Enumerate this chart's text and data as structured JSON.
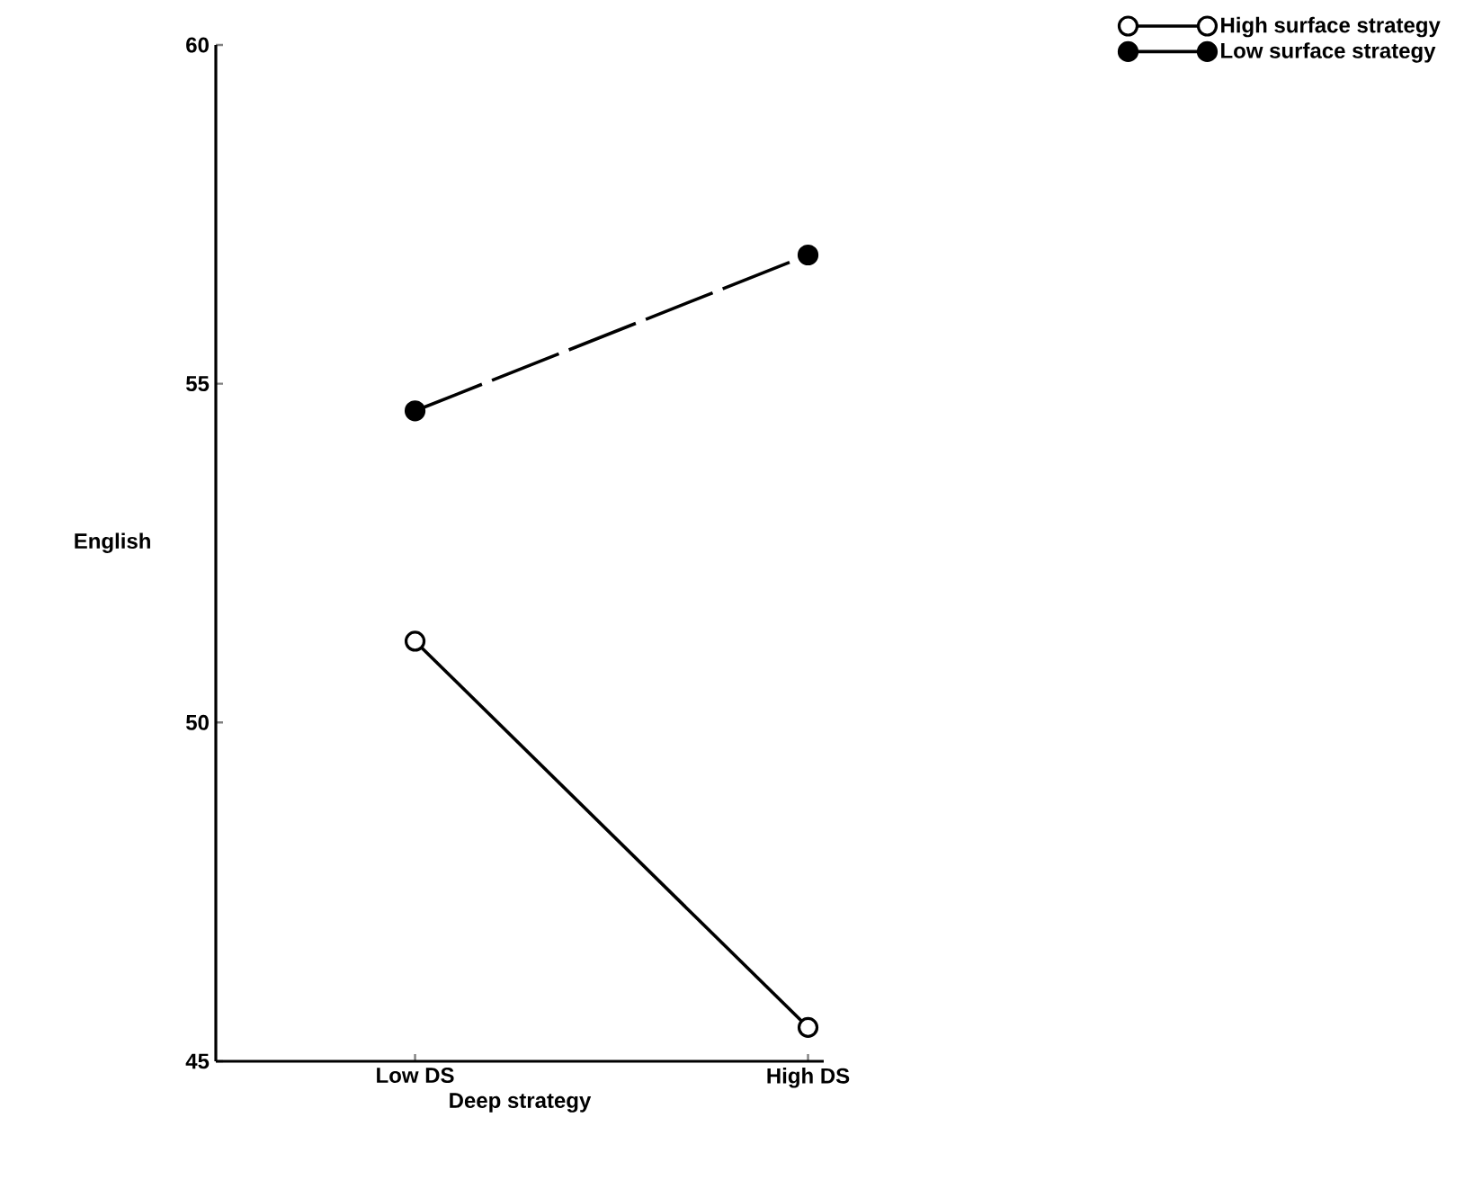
{
  "chart_data": {
    "type": "line",
    "xlabel": "Deep strategy",
    "ylabel": "English",
    "categories": [
      "Low DS",
      "High DS"
    ],
    "series": [
      {
        "name": "High surface strategy",
        "color": "#000000",
        "values": [
          51.2,
          45.5
        ],
        "line_style": "solid"
      },
      {
        "name": "Low surface strategy",
        "color": "#000000",
        "values": [
          54.6,
          56.9
        ],
        "line_style": "dashed"
      }
    ],
    "ylim": [
      45,
      60
    ],
    "yticks": [
      45,
      50,
      55,
      60
    ],
    "marker": "circle",
    "grid": false,
    "legend": "top right"
  }
}
